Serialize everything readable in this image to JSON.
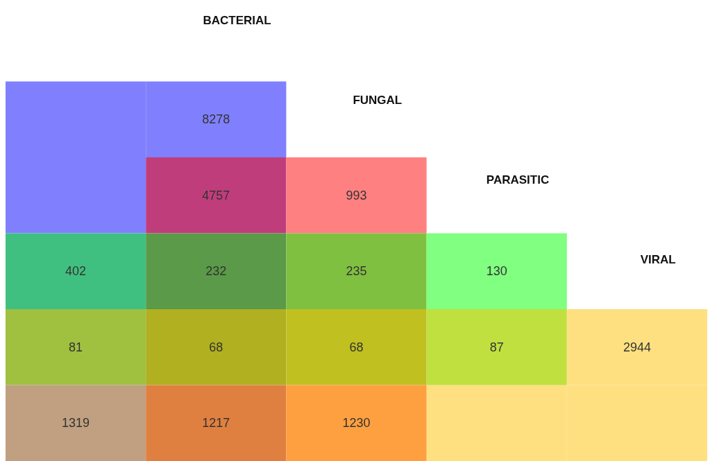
{
  "chart_data": {
    "type": "other",
    "data_labels": true,
    "annotations": [
      "BACTERIAL",
      "FUNGAL",
      "PARASITIC",
      "VIRAL"
    ],
    "values": [
      8278,
      4757,
      993,
      402,
      232,
      235,
      130,
      81,
      68,
      68,
      87,
      2944,
      1319,
      1217,
      1230
    ],
    "colors": [
      "#8080ff",
      "#c03d7c",
      "#ff8080",
      "#40c080",
      "#5a9a48",
      "#80c040",
      "#80ff80",
      "#a0c040",
      "#b0b020",
      "#c0c020",
      "#c0e040",
      "#ffe080",
      "#c0a080",
      "#e08040",
      "#ffa040"
    ]
  }
}
